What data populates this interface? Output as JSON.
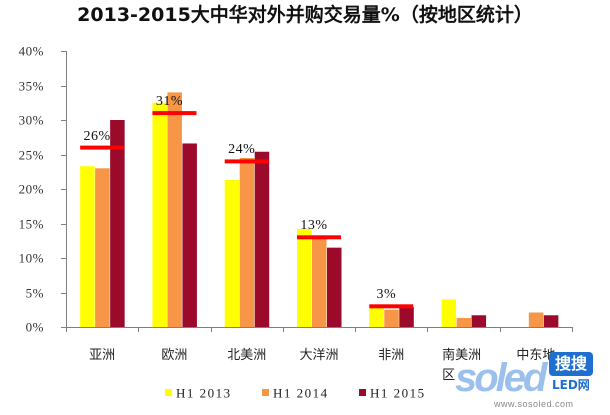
{
  "chart_data": {
    "type": "bar",
    "title": "2013-2015大中华对外并购交易量%（按地区统计）",
    "categories": [
      "亚洲",
      "欧洲",
      "北美洲",
      "大洋洲",
      "非洲",
      "南美洲区",
      "中东地"
    ],
    "series": [
      {
        "name": "H1 2013",
        "color": "#ffff00",
        "values": [
          23.3,
          32.5,
          21.3,
          14.2,
          2.8,
          4.0,
          0
        ]
      },
      {
        "name": "H1 2014",
        "color": "#f79646",
        "values": [
          23.0,
          34.0,
          24.5,
          12.8,
          2.5,
          1.3,
          2.1
        ]
      },
      {
        "name": "H1 2015",
        "color": "#9b0a2a",
        "values": [
          30.0,
          26.6,
          25.4,
          11.5,
          2.9,
          1.7,
          1.7
        ]
      }
    ],
    "averages": {
      "color": "#ff0000",
      "values": [
        26,
        31,
        24,
        13,
        3,
        null,
        null
      ],
      "labels": [
        "26%",
        "31%",
        "24%",
        "13%",
        "3%",
        null,
        null
      ]
    },
    "ylim": [
      0,
      40
    ],
    "yticks": [
      {
        "value": 0,
        "label": "0%"
      },
      {
        "value": 5,
        "label": "5%"
      },
      {
        "value": 10,
        "label": "10%"
      },
      {
        "value": 15,
        "label": "15%"
      },
      {
        "value": 20,
        "label": "20%"
      },
      {
        "value": 25,
        "label": "25%"
      },
      {
        "value": 30,
        "label": "30%"
      },
      {
        "value": 35,
        "label": "35%"
      },
      {
        "value": 40,
        "label": "40%"
      }
    ],
    "grid": false,
    "legend": "bottom"
  },
  "watermark": {
    "brand": "soled",
    "badge": "搜搜",
    "sub": "LED网",
    "url": "www.sosoled.com"
  }
}
